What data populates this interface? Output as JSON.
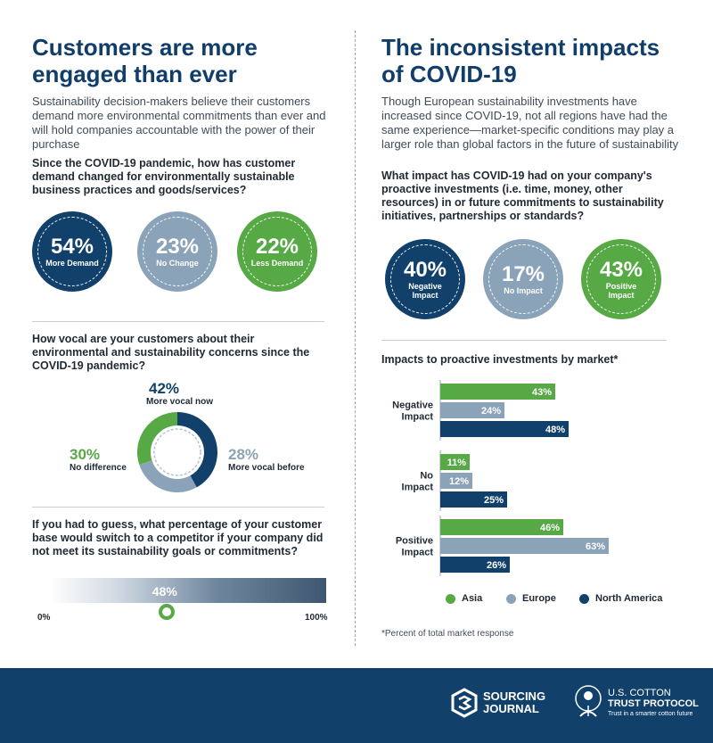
{
  "left": {
    "title": "Customers are more engaged than ever",
    "intro": "Sustainability decision-makers believe their customers demand more environmental commitments than ever and will hold companies accountable with the power of their purchase",
    "q1": "Since the COVID-19 pandemic, how has customer demand changed for environmentally sustainable business practices and goods/services?",
    "stats": [
      {
        "pct": "54%",
        "label": "More Demand",
        "color": "#11406b"
      },
      {
        "pct": "23%",
        "label": "No Change",
        "color": "#8aa3b8"
      },
      {
        "pct": "22%",
        "label": "Less Demand",
        "color": "#57a946"
      }
    ],
    "q2": "How vocal are your customers about their environmental and sustainability concerns since the COVID-19 pandemic?",
    "q3": "If you had to guess, what percentage of your customer base would switch to a competitor if your company did not meet its sustainability goals or commitments?",
    "slider": {
      "value": 48,
      "value_label": "48%",
      "min_label": "0%",
      "max_label": "100%"
    }
  },
  "right": {
    "title": "The inconsistent impacts of COVID-19",
    "intro": "Though European sustainability investments have increased since COVID-19, not all regions have had the same experience—market-specific conditions may play a larger role than global factors in the future of sustainability",
    "q1": "What impact has COVID-19 had on your company's proactive investments (i.e. time, money, other resources) in or future commitments to sustainability initiatives, partnerships or standards?",
    "stats": [
      {
        "pct": "40%",
        "label": "Negative Impact",
        "color": "#11406b"
      },
      {
        "pct": "17%",
        "label": "No Impact",
        "color": "#8aa3b8"
      },
      {
        "pct": "43%",
        "label": "Positive Impact",
        "color": "#57a946"
      }
    ],
    "bar_title": "Impacts to proactive investments by market*",
    "footnote": "*Percent of total market response"
  },
  "chart_data": [
    {
      "type": "pie",
      "title": "",
      "categories": [
        "More vocal now",
        "More vocal before",
        "No difference"
      ],
      "values": [
        42,
        28,
        30
      ],
      "labels": [
        "42%",
        "28%",
        "30%"
      ],
      "colors": [
        "#11406b",
        "#8aa3b8",
        "#57a946"
      ]
    },
    {
      "type": "bar",
      "orientation": "horizontal",
      "title": "Impacts to proactive investments by market*",
      "categories": [
        "Negative Impact",
        "No Impact",
        "Positive Impact"
      ],
      "series": [
        {
          "name": "Asia",
          "values": [
            43,
            11,
            46
          ],
          "color": "#57a946"
        },
        {
          "name": "Europe",
          "values": [
            24,
            12,
            63
          ],
          "color": "#8aa3b8"
        },
        {
          "name": "North America",
          "values": [
            48,
            25,
            26
          ],
          "color": "#11406b"
        }
      ],
      "xlim": [
        0,
        70
      ],
      "legend": "bottom"
    }
  ],
  "footer": {
    "brand1_line1": "SOURCING",
    "brand1_line2": "JOURNAL",
    "brand2_line1": "U.S. COTTON",
    "brand2_line2": "TRUST PROTOCOL",
    "brand2_tagline": "Trust in a smarter cotton future"
  }
}
